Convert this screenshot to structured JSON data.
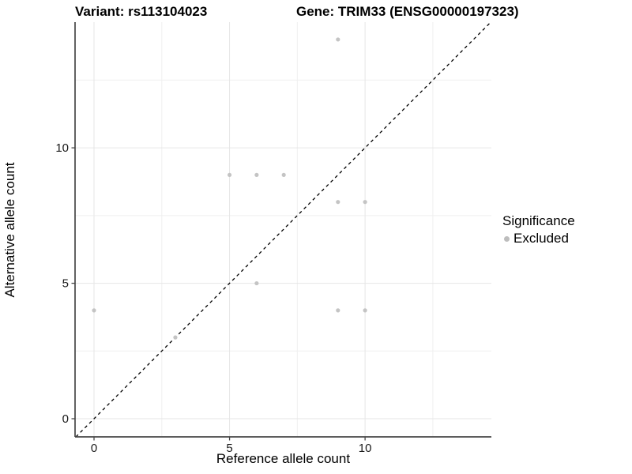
{
  "header": {
    "variant_title": "Variant: rs113104023",
    "gene_title": "Gene: TRIM33 (ENSG00000197323)"
  },
  "chart_data": {
    "type": "scatter",
    "xlabel": "Reference allele count",
    "ylabel": "Alternative allele count",
    "x_ticks": [
      0,
      5,
      10
    ],
    "y_ticks": [
      0,
      5,
      10
    ],
    "x_minor_gridlines": [
      2.5,
      7.5,
      12.5
    ],
    "y_minor_gridlines": [
      2.5,
      7.5,
      12.5
    ],
    "xlim": [
      -0.7,
      14.66
    ],
    "ylim": [
      -0.67,
      14.64
    ],
    "grid": true,
    "series": [
      {
        "name": "Excluded",
        "color": "#c4c4c4",
        "points": [
          [
            0,
            4
          ],
          [
            3,
            3
          ],
          [
            5,
            9
          ],
          [
            6,
            5
          ],
          [
            6,
            9
          ],
          [
            7,
            9
          ],
          [
            9,
            4
          ],
          [
            9,
            8
          ],
          [
            9,
            14
          ],
          [
            10,
            4
          ],
          [
            10,
            8
          ]
        ]
      }
    ],
    "reference_line": {
      "type": "identity y=x",
      "style": "dashed",
      "color": "#000000"
    },
    "legend": {
      "title": "Significance",
      "position": "right",
      "entries": [
        {
          "label": "Excluded",
          "color": "#bdbdbd"
        }
      ]
    },
    "colors": {
      "major_grid": "#e6e6e6",
      "minor_grid": "#efefef",
      "axis_line": "#464646",
      "tick_label": "#1a1a1a"
    }
  }
}
